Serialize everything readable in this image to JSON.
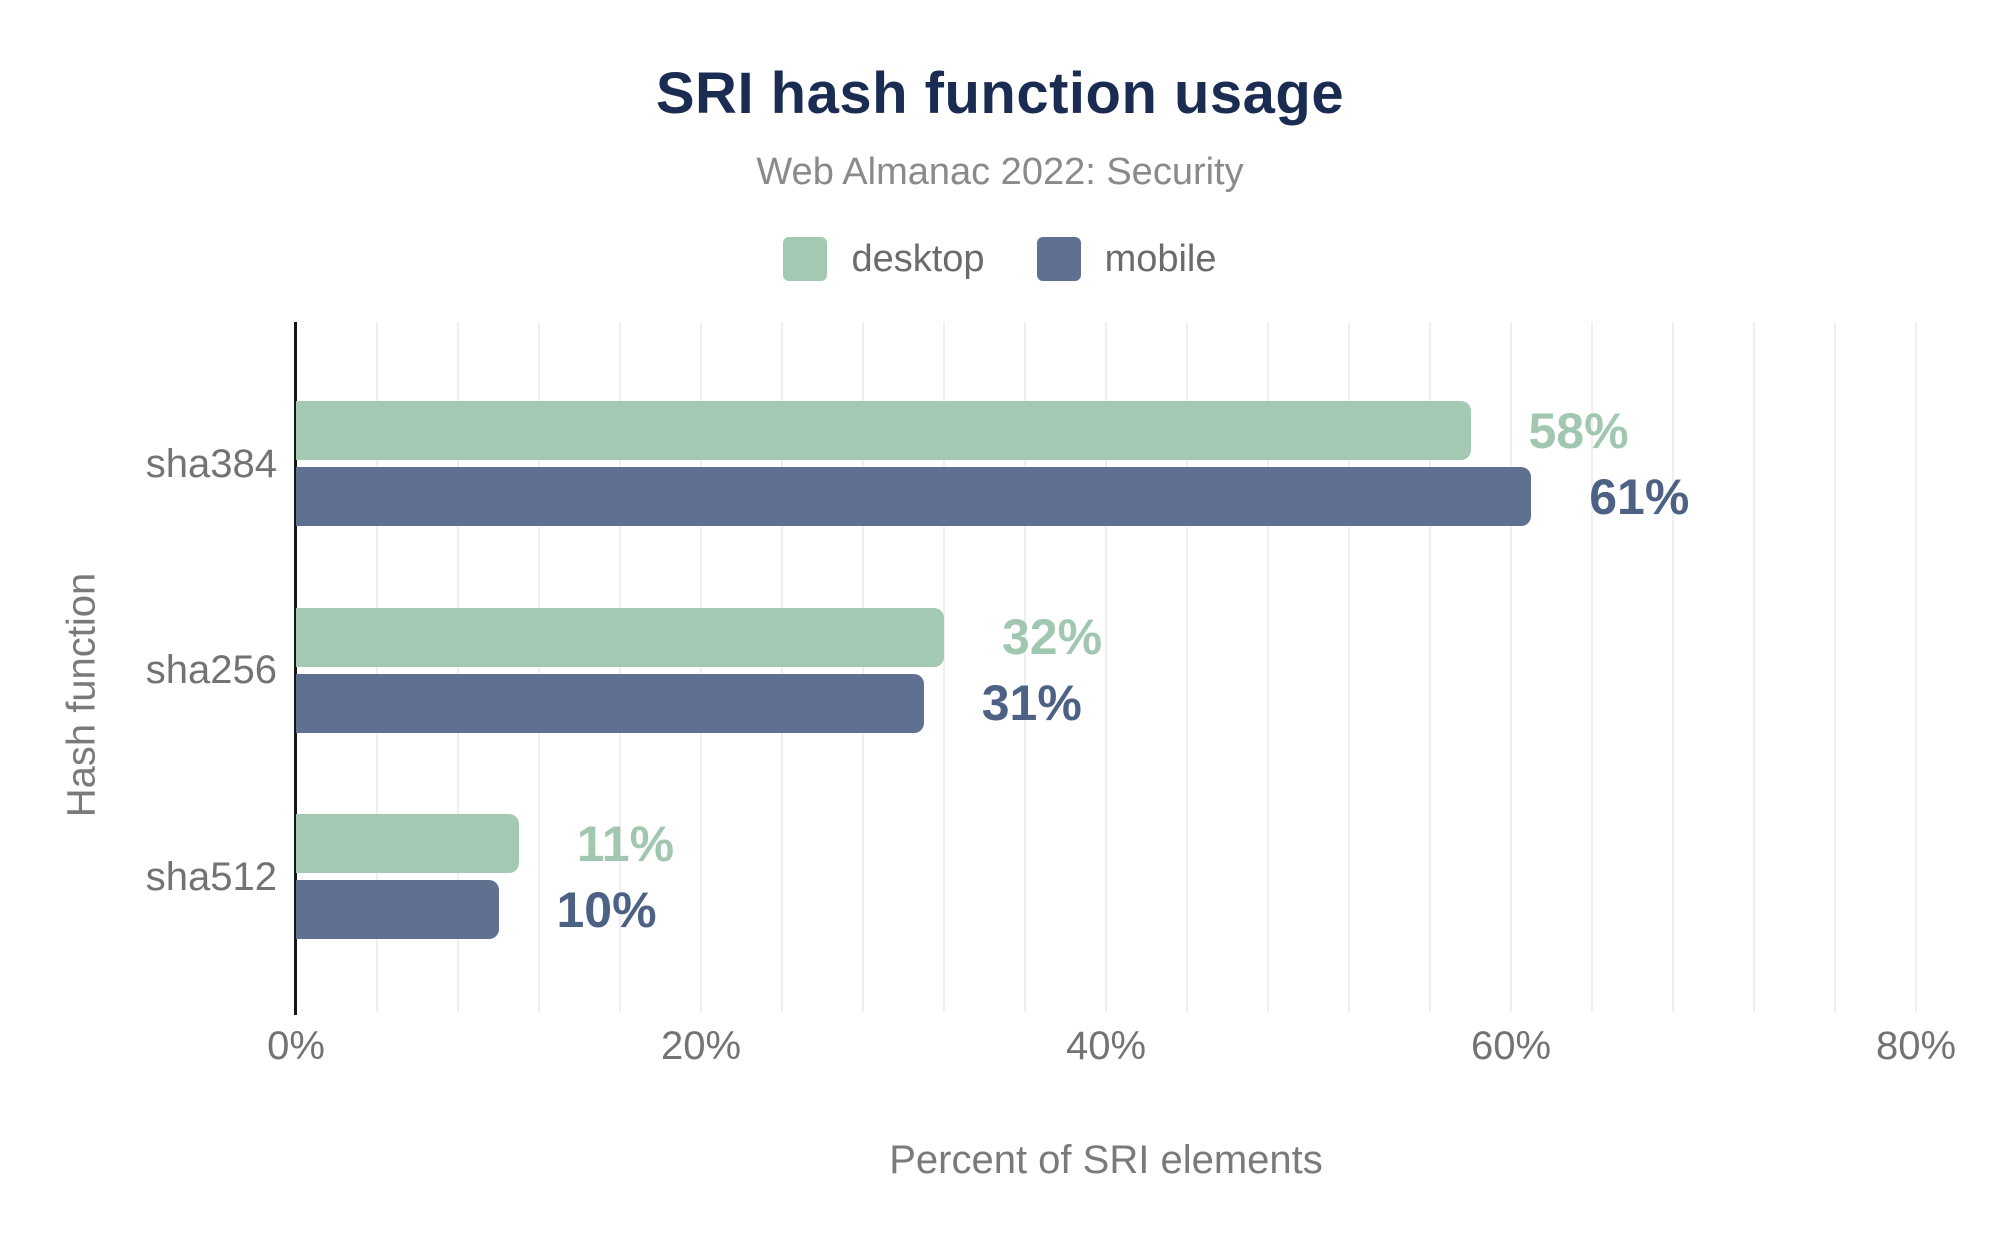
{
  "chart_data": {
    "type": "bar",
    "orientation": "horizontal",
    "title": "SRI hash function usage",
    "subtitle": "Web Almanac 2022: Security",
    "xlabel": "Percent of SRI elements",
    "ylabel": "Hash function",
    "categories": [
      "sha384",
      "sha256",
      "sha512"
    ],
    "series": [
      {
        "name": "desktop",
        "color": "#a3c9b3",
        "label_color": "#a1c7b1",
        "values": [
          58,
          32,
          11
        ]
      },
      {
        "name": "mobile",
        "color": "#5f7090",
        "label_color": "#4d6184",
        "values": [
          61,
          31,
          10
        ]
      }
    ],
    "data_labels": [
      [
        "58%",
        "32%",
        "11%"
      ],
      [
        "61%",
        "31%",
        "10%"
      ]
    ],
    "x_ticks": [
      {
        "label": "0%",
        "value": 0
      },
      {
        "label": "20%",
        "value": 20
      },
      {
        "label": "40%",
        "value": 40
      },
      {
        "label": "60%",
        "value": 60
      },
      {
        "label": "80%",
        "value": 80
      }
    ],
    "xlim": [
      0,
      82
    ],
    "grid_step": 4,
    "grid_on": true,
    "legend_position": "top"
  },
  "colors": {
    "title": "#1a2c52",
    "subtitle": "#8a8a8a",
    "axis_text": "#737373",
    "axis_title": "#7a7a7a",
    "legend_text": "#6b6b6b",
    "gridline": "#efefef",
    "axis_line": "#161616",
    "background": "#ffffff"
  }
}
